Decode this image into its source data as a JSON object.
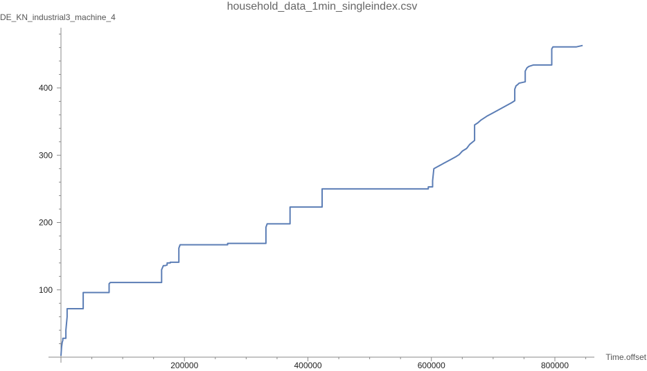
{
  "chart_data": {
    "type": "line",
    "title": "household_data_1min_singleindex.csv",
    "xlabel": "Time.offset",
    "ylabel": "DE_KN_industrial3_machine_4",
    "xlim": [
      0,
      860000
    ],
    "ylim": [
      0,
      480
    ],
    "x_ticks": [
      200000,
      400000,
      600000,
      800000
    ],
    "y_ticks": [
      100,
      200,
      300,
      400
    ],
    "x_tick_labels": [
      "200000",
      "400000",
      "600000",
      "800000"
    ],
    "y_tick_labels": [
      "100",
      "200",
      "300",
      "400"
    ],
    "grid": false,
    "series": [
      {
        "color": "#5b7db5",
        "x": [
          0,
          500,
          1000,
          2000,
          3000,
          3000,
          8000,
          8000,
          10000,
          10000,
          36000,
          36000,
          78000,
          78000,
          80000,
          163000,
          163000,
          166000,
          169000,
          172000,
          172000,
          177000,
          177000,
          191000,
          191000,
          193000,
          270000,
          270000,
          332000,
          332000,
          334000,
          371000,
          371000,
          423000,
          423000,
          595000,
          595000,
          602000,
          602000,
          604000,
          610000,
          620000,
          630000,
          640000,
          645000,
          650000,
          657000,
          662000,
          670000,
          670000,
          675000,
          680000,
          690000,
          700000,
          710000,
          720000,
          730000,
          735000,
          735000,
          737000,
          740000,
          742000,
          752000,
          752000,
          755000,
          758000,
          765000,
          768000,
          795000,
          795000,
          797000,
          835000,
          845000
        ],
        "y": [
          2,
          8,
          15,
          22,
          25,
          28,
          28,
          40,
          60,
          72,
          72,
          96,
          96,
          109,
          111,
          111,
          130,
          136,
          136,
          137,
          140,
          140,
          141,
          141,
          162,
          167,
          167,
          169,
          169,
          193,
          198,
          198,
          223,
          223,
          250,
          250,
          253,
          253,
          262,
          280,
          283,
          288,
          293,
          298,
          301,
          306,
          310,
          316,
          322,
          345,
          348,
          352,
          358,
          363,
          368,
          373,
          378,
          381,
          398,
          403,
          405,
          407,
          409,
          425,
          430,
          432,
          434,
          434,
          434,
          458,
          461,
          461,
          463
        ]
      }
    ]
  }
}
